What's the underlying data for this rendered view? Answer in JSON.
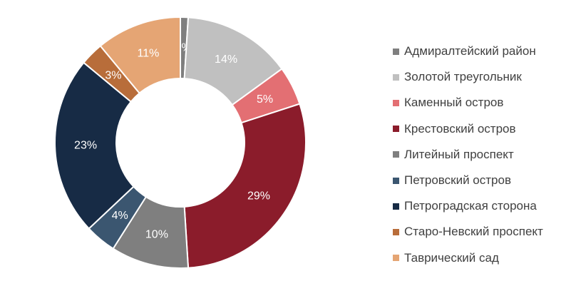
{
  "chart_data": {
    "type": "pie",
    "donut": true,
    "title": "",
    "legend_position": "right",
    "series": [
      {
        "name": "Адмиралтейский район",
        "value": 1,
        "label": "1%",
        "color": "#7f7f7f",
        "label_color": "#ffffff"
      },
      {
        "name": "Золотой треугольник",
        "value": 14,
        "label": "14%",
        "color": "#c0c0c0",
        "label_color": "#ffffff"
      },
      {
        "name": "Каменный остров",
        "value": 5,
        "label": "5%",
        "color": "#e36f73",
        "label_color": "#ffffff"
      },
      {
        "name": "Крестовский остров",
        "value": 29,
        "label": "29%",
        "color": "#8b1c2b",
        "label_color": "#ffffff"
      },
      {
        "name": "Литейный проспект",
        "value": 10,
        "label": "10%",
        "color": "#7f7f7f",
        "label_color": "#ffffff"
      },
      {
        "name": "Петровский остров",
        "value": 4,
        "label": "4%",
        "color": "#3b5670",
        "label_color": "#ffffff"
      },
      {
        "name": "Петроградская сторона",
        "value": 23,
        "label": "23%",
        "color": "#172b45",
        "label_color": "#ffffff"
      },
      {
        "name": "Старо-Невский проспект",
        "value": 3,
        "label": "3%",
        "color": "#b86d3a",
        "label_color": "#ffffff"
      },
      {
        "name": "Таврический сад",
        "value": 11,
        "label": "11%",
        "color": "#e5a574",
        "label_color": "#ffffff"
      }
    ]
  }
}
